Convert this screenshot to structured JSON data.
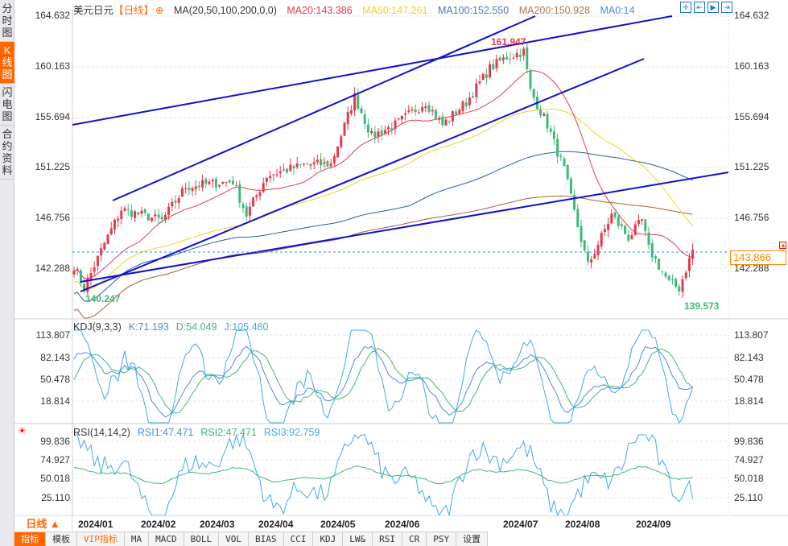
{
  "sidebar": [
    "分时图",
    "K线图",
    "闪电图",
    "合约资料"
  ],
  "header": {
    "symbol": "美元日元",
    "period": "【日线】",
    "ma_label": "MA(20,50,100,200,0,0)",
    "ma20": "MA20:143.386",
    "ma50": "MA50:147.261",
    "ma100": "MA100:152.550",
    "ma200": "MA200:150.928",
    "ma0": "MA0:14"
  },
  "price_axis": [
    "164.632",
    "160.163",
    "155.694",
    "151.225",
    "146.756",
    "142.288"
  ],
  "current_price": "143.866",
  "high_label": "161.947",
  "low_label": "139.573",
  "low_label2": "140.247",
  "kdj": {
    "label": "KDJ(9,3,3)",
    "k": "K:71.193",
    "d": "D:54.049",
    "j": "J:105.480",
    "axis": [
      "113.807",
      "82.143",
      "50.478",
      "18.814"
    ]
  },
  "rsi": {
    "label": "RSI(14,14,2)",
    "rsi1": "RSI1:47.471",
    "rsi2": "RSI2:47.471",
    "rsi3": "RSI3:92.759",
    "axis": [
      "99.836",
      "74.927",
      "50.018",
      "25.110"
    ]
  },
  "period_select": "日线 ▲",
  "dates": [
    "2024/01",
    "2024/02",
    "2024/03",
    "2024/04",
    "2024/05",
    "2024/06",
    "2024/07",
    "2024/08",
    "2024/09"
  ],
  "tabs": [
    "指标",
    "模板",
    "VIP指标",
    "MA",
    "MACD",
    "BOLL",
    "VOL",
    "BIAS",
    "CCI",
    "KDJ",
    "LW&",
    "RSI",
    "CR",
    "PSY",
    "设置"
  ],
  "colors": {
    "up": "#e8374a",
    "down": "#3cb878",
    "ma20": "#e8374a",
    "ma50": "#f0d020",
    "ma100": "#2060b0",
    "ma200": "#a06040",
    "trend": "#1010d0",
    "accent": "#ff6600"
  },
  "chart_data": {
    "type": "candlestick",
    "keypoints": [
      [
        0,
        142.5
      ],
      [
        3,
        140.5
      ],
      [
        9,
        144.5
      ],
      [
        14,
        147.5
      ],
      [
        26,
        146.5
      ],
      [
        33,
        149.5
      ],
      [
        47,
        150
      ],
      [
        51,
        147
      ],
      [
        57,
        150.5
      ],
      [
        69,
        151.5
      ],
      [
        76,
        151.5
      ],
      [
        83,
        157.5
      ],
      [
        88,
        154
      ],
      [
        95,
        155
      ],
      [
        104,
        157
      ],
      [
        109,
        155
      ],
      [
        116,
        157
      ],
      [
        123,
        160
      ],
      [
        128,
        161
      ],
      [
        133,
        161.5
      ],
      [
        135,
        158
      ],
      [
        140,
        155
      ],
      [
        145,
        151
      ],
      [
        149,
        146
      ],
      [
        152,
        142.5
      ],
      [
        159,
        147
      ],
      [
        164,
        145
      ],
      [
        168,
        146.5
      ],
      [
        170,
        144
      ],
      [
        176,
        141
      ],
      [
        179,
        140.5
      ],
      [
        183,
        143.9
      ]
    ]
  }
}
